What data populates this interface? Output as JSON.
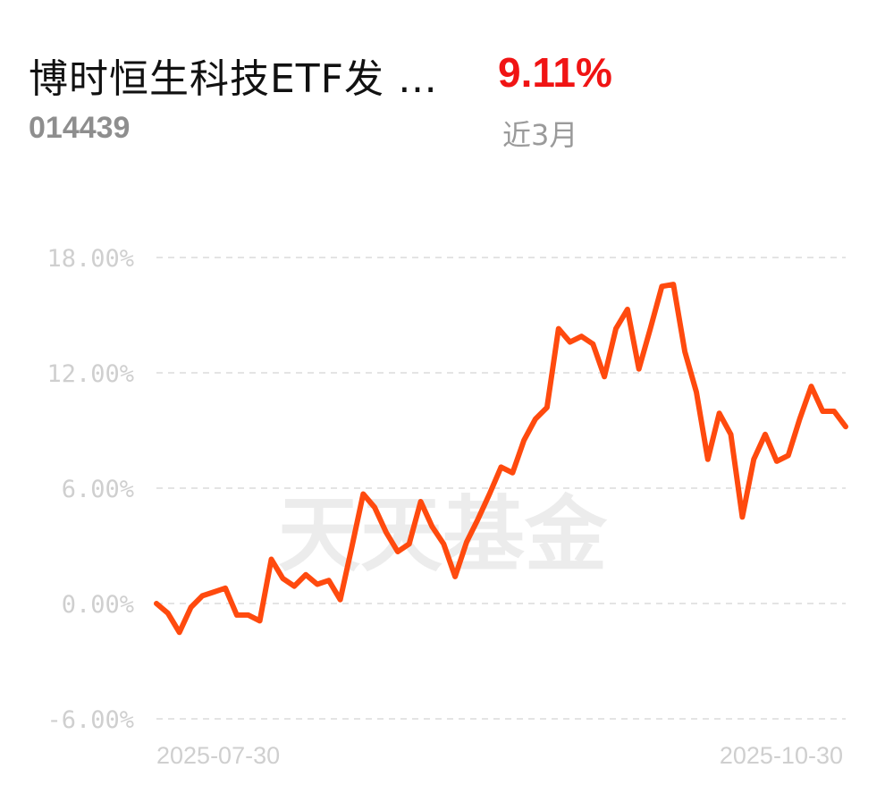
{
  "fund": {
    "name": "博时恒生科技ETF发 …",
    "code": "014439",
    "return_value": "9.11%",
    "return_period": "近3月"
  },
  "watermark": "天天基金",
  "colors": {
    "line": "#ff4a0e",
    "return_positive": "#f01414",
    "grid": "#e4e4e4",
    "axis_text": "#cfcfcf"
  },
  "chart_data": {
    "type": "line",
    "title": "",
    "xlabel": "",
    "ylabel": "",
    "ylim": [
      -6,
      18
    ],
    "yticks": [
      18,
      12,
      6,
      0,
      -6
    ],
    "ytick_labels": [
      "18.00%",
      "12.00%",
      "6.00%",
      "0.00%",
      "-6.00%"
    ],
    "grid": "horizontal dashed",
    "x_start_label": "2025-07-30",
    "x_end_label": "2025-10-30",
    "series": [
      {
        "values": [
          0.0,
          -0.5,
          -1.5,
          -0.2,
          0.4,
          0.6,
          0.8,
          -0.6,
          -0.6,
          -0.9,
          2.3,
          1.3,
          0.9,
          1.5,
          1.0,
          1.2,
          0.2,
          2.9,
          5.7,
          5.0,
          3.7,
          2.7,
          3.1,
          5.3,
          4.0,
          3.1,
          1.4,
          3.2,
          4.4,
          5.7,
          7.1,
          6.8,
          8.5,
          9.6,
          10.2,
          14.3,
          13.6,
          13.9,
          13.5,
          11.8,
          14.3,
          15.3,
          12.2,
          14.3,
          16.5,
          16.6,
          13.1,
          11.0,
          7.5,
          9.9,
          8.8,
          4.5,
          7.5,
          8.8,
          7.4,
          7.7,
          9.6,
          11.3,
          10.0,
          10.0,
          9.2
        ]
      }
    ]
  }
}
